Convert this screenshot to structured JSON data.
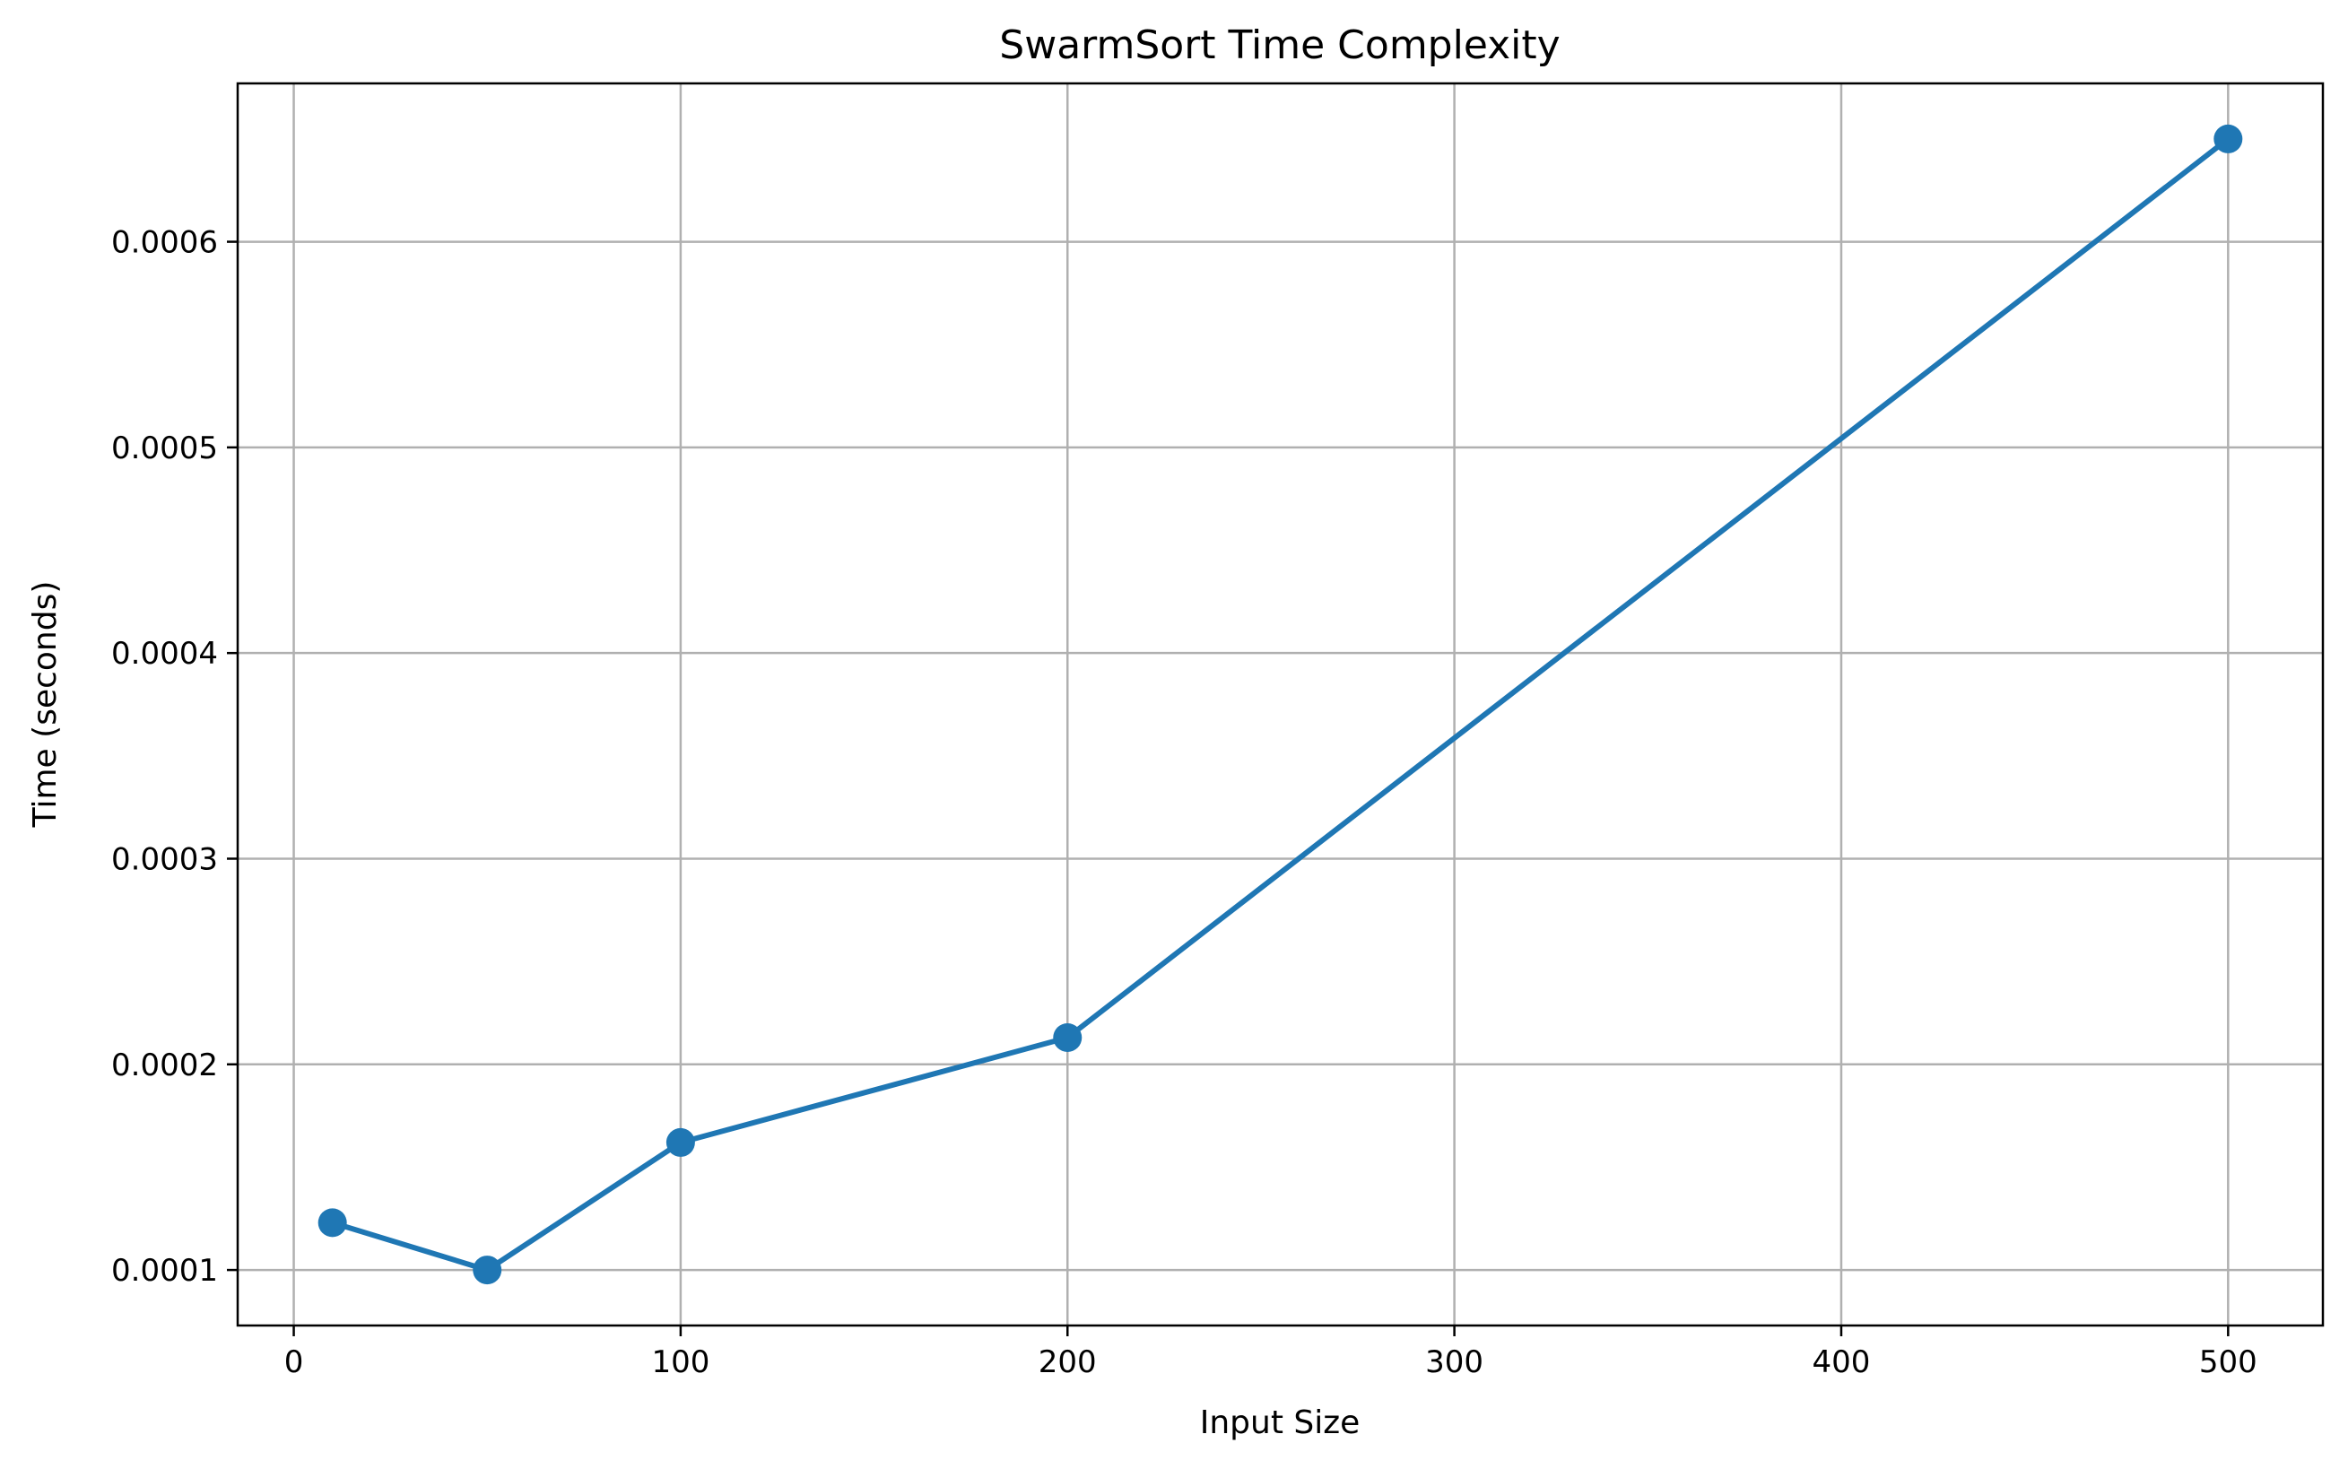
{
  "chart_data": {
    "type": "line",
    "title": "SwarmSort Time Complexity",
    "xlabel": "Input Size",
    "ylabel": "Time (seconds)",
    "xlim": [
      -14.5,
      524.5
    ],
    "ylim": [
      7.3e-05,
      0.000677
    ],
    "x_ticks": [
      0,
      100,
      200,
      300,
      400,
      500
    ],
    "x_tick_labels": [
      "0",
      "100",
      "200",
      "300",
      "400",
      "500"
    ],
    "y_ticks": [
      0.0001,
      0.0002,
      0.0003,
      0.0004,
      0.0005,
      0.0006
    ],
    "y_tick_labels": [
      "0.0001",
      "0.0002",
      "0.0003",
      "0.0004",
      "0.0005",
      "0.0006"
    ],
    "grid": true,
    "series": [
      {
        "x": [
          10,
          50,
          100,
          200,
          500
        ],
        "y": [
          0.000123,
          0.0001,
          0.000162,
          0.000213,
          0.00065
        ],
        "color": "#1f77b4",
        "marker": "circle"
      }
    ]
  }
}
